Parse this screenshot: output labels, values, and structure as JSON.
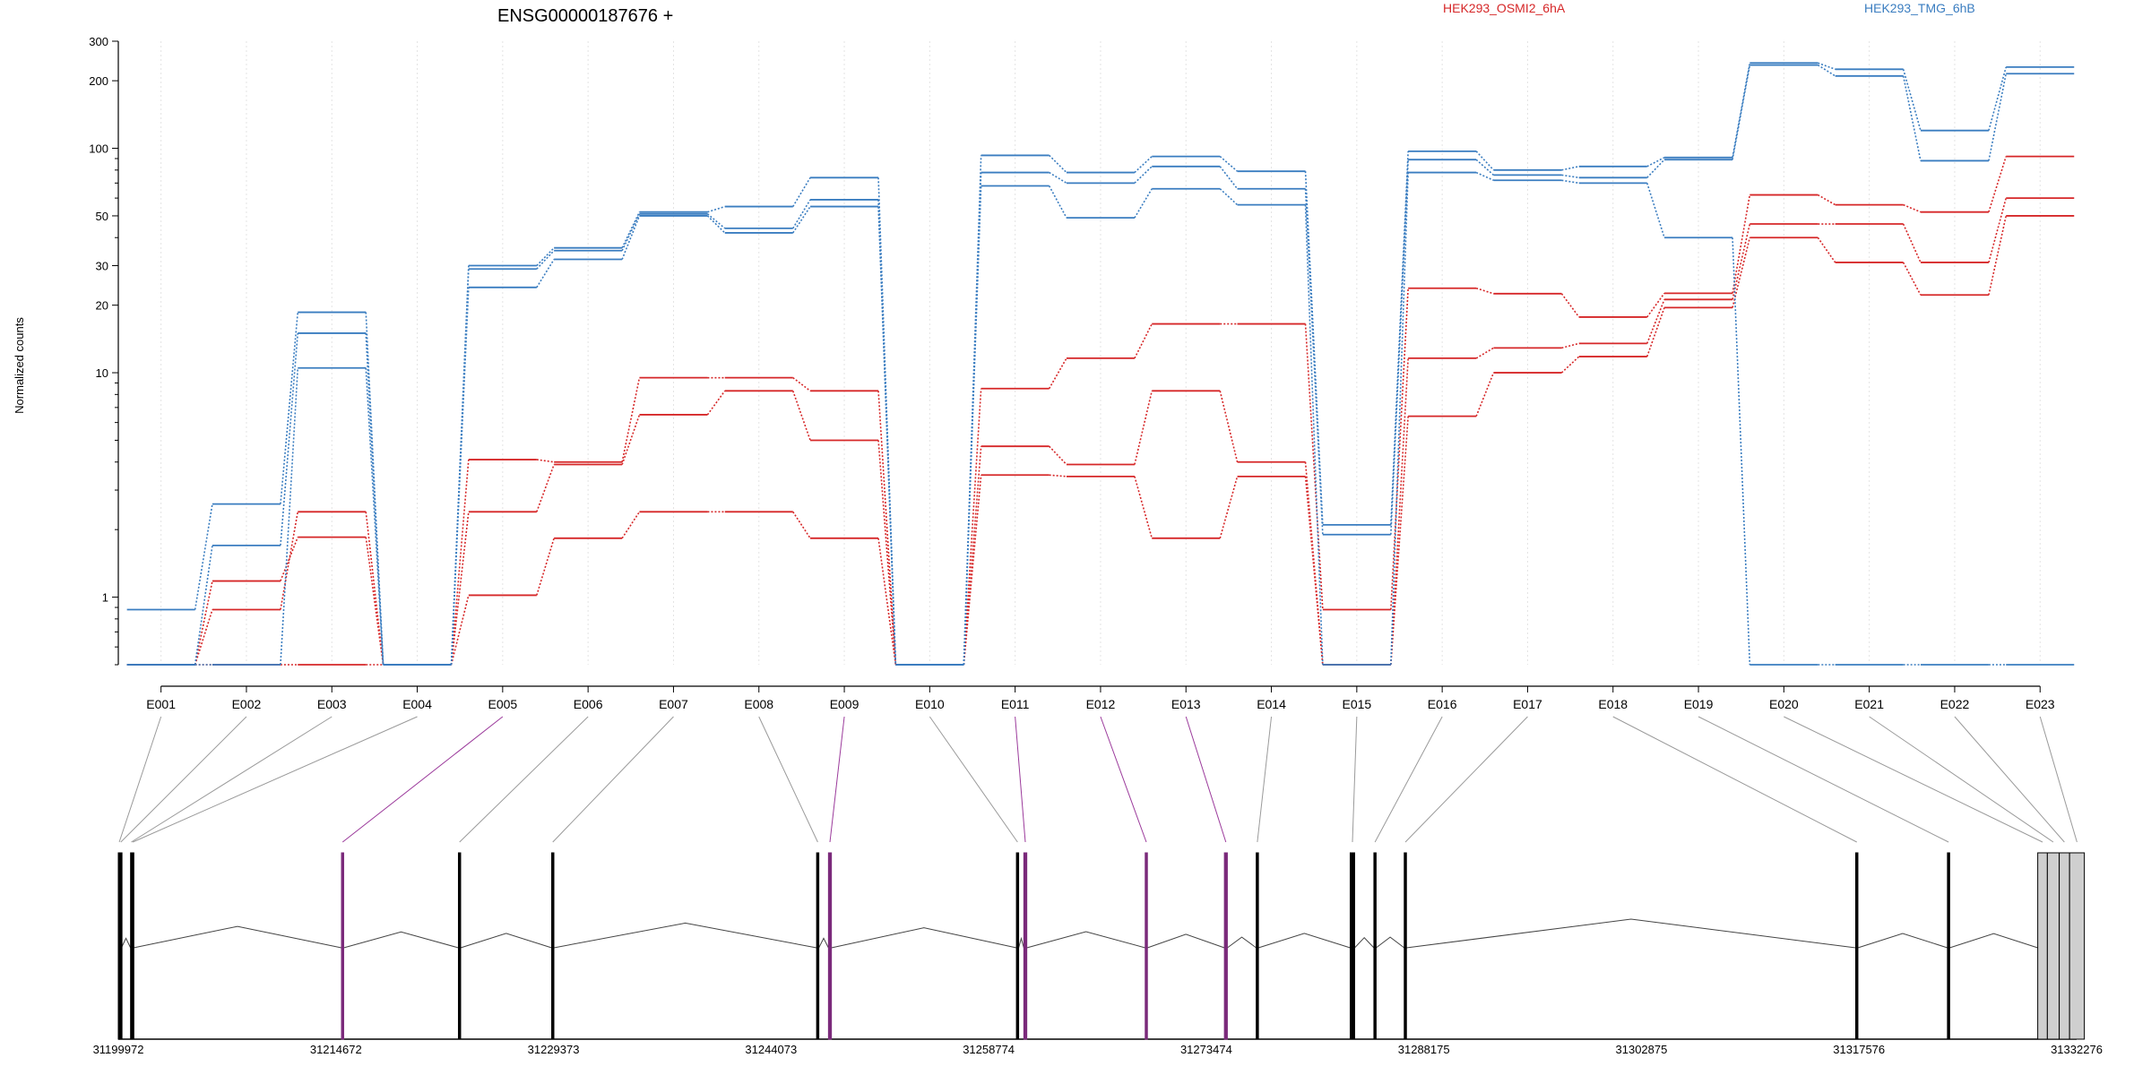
{
  "chart_data": {
    "type": "line",
    "title": "ENSG00000187676 +",
    "ylabel": "Normalized counts",
    "yscale": "log",
    "ylim": [
      0.5,
      300
    ],
    "y_ticks": [
      1,
      10,
      20,
      30,
      50,
      100,
      200,
      300
    ],
    "grid": "vertical dotted lines at exon centers",
    "legend": [
      {
        "name": "HEK293_OSMI2_6hA",
        "color": "#d62728"
      },
      {
        "name": "HEK293_TMG_6hB",
        "color": "#3a7dc0"
      }
    ],
    "legend_placement": "top",
    "categories": [
      "E001",
      "E002",
      "E003",
      "E004",
      "E005",
      "E006",
      "E007",
      "E008",
      "E009",
      "E010",
      "E011",
      "E012",
      "E013",
      "E014",
      "E015",
      "E016",
      "E017",
      "E018",
      "E019",
      "E020",
      "E021",
      "E022",
      "E023"
    ],
    "series": [
      {
        "group": "HEK293_OSMI2_6hA",
        "color": "#d62728",
        "values": [
          0.5,
          0.88,
          2.4,
          0.5,
          4.1,
          4.0,
          9.5,
          9.5,
          8.3,
          0.5,
          8.5,
          11.6,
          16.5,
          16.5,
          0.88,
          23.8,
          22.5,
          17.7,
          22.6,
          62,
          56,
          52,
          92
        ]
      },
      {
        "group": "HEK293_OSMI2_6hA",
        "color": "#d62728",
        "values": [
          0.5,
          1.18,
          1.85,
          0.5,
          2.4,
          3.9,
          6.5,
          8.3,
          5.0,
          0.5,
          4.7,
          3.9,
          8.3,
          4.0,
          0.5,
          11.6,
          12.9,
          13.5,
          21.2,
          46,
          46,
          31,
          60
        ]
      },
      {
        "group": "HEK293_OSMI2_6hA",
        "color": "#d62728",
        "values": [
          0.5,
          0.5,
          0.5,
          0.5,
          1.02,
          1.83,
          2.4,
          2.4,
          1.83,
          0.5,
          3.5,
          3.45,
          1.83,
          3.45,
          0.5,
          6.4,
          10.0,
          11.8,
          19.5,
          40,
          31,
          22.2,
          50
        ]
      },
      {
        "group": "HEK293_TMG_6hB",
        "color": "#3a7dc0",
        "values": [
          0.88,
          2.6,
          18.6,
          0.5,
          30,
          36,
          52,
          55,
          74,
          0.5,
          93,
          78,
          92,
          79,
          2.1,
          97,
          80,
          83,
          91,
          240,
          225,
          120,
          230
        ]
      },
      {
        "group": "HEK293_TMG_6hB",
        "color": "#3a7dc0",
        "values": [
          0.5,
          1.7,
          15,
          0.5,
          29,
          35,
          51,
          44,
          59,
          0.5,
          78,
          70,
          83,
          66,
          1.9,
          89,
          76,
          74,
          89,
          235,
          210,
          88,
          215
        ]
      },
      {
        "group": "HEK293_TMG_6hB",
        "color": "#3a7dc0",
        "values": [
          0.5,
          0.5,
          10.5,
          0.5,
          24,
          32,
          50,
          42,
          55,
          0.5,
          68,
          49,
          66,
          56,
          0.5,
          78,
          72,
          70,
          40,
          0.5,
          0.5,
          0.5,
          0.5
        ]
      }
    ],
    "gene_model": {
      "coordinate_ticks": [
        "31199972",
        "31214672",
        "31229373",
        "31244073",
        "31258774",
        "31273474",
        "31288175",
        "31302875",
        "31317576",
        "31332276"
      ],
      "exons": [
        {
          "id": "E001",
          "start": 31199972,
          "end": 31200100,
          "highlight": false
        },
        {
          "id": "E002",
          "start": 31200100,
          "end": 31200180,
          "highlight": false
        },
        {
          "id": "E003",
          "start": 31200800,
          "end": 31200900,
          "highlight": false
        },
        {
          "id": "E004",
          "start": 31200900,
          "end": 31201000,
          "highlight": false
        },
        {
          "id": "E005",
          "start": 31215050,
          "end": 31215200,
          "highlight": true
        },
        {
          "id": "E006",
          "start": 31222950,
          "end": 31223100,
          "highlight": false
        },
        {
          "id": "E007",
          "start": 31229250,
          "end": 31229400,
          "highlight": false
        },
        {
          "id": "E008",
          "start": 31247150,
          "end": 31247300,
          "highlight": false
        },
        {
          "id": "E009",
          "start": 31247950,
          "end": 31248150,
          "highlight": true
        },
        {
          "id": "E010",
          "start": 31260650,
          "end": 31260800,
          "highlight": false
        },
        {
          "id": "E011",
          "start": 31261150,
          "end": 31261350,
          "highlight": true
        },
        {
          "id": "E012",
          "start": 31269350,
          "end": 31269500,
          "highlight": true
        },
        {
          "id": "E013",
          "start": 31274700,
          "end": 31274900,
          "highlight": true
        },
        {
          "id": "E014",
          "start": 31276850,
          "end": 31277000,
          "highlight": false
        },
        {
          "id": "E015",
          "start": 31283200,
          "end": 31283500,
          "highlight": false
        },
        {
          "id": "E016",
          "start": 31284800,
          "end": 31284950,
          "highlight": false
        },
        {
          "id": "E017",
          "start": 31286850,
          "end": 31287000,
          "highlight": false
        },
        {
          "id": "E018",
          "start": 31317350,
          "end": 31317500,
          "highlight": false
        },
        {
          "id": "E019",
          "start": 31323550,
          "end": 31323700,
          "highlight": false
        },
        {
          "id": "E020",
          "start": 31329650,
          "end": 31330300,
          "highlight": false
        },
        {
          "id": "E021",
          "start": 31330300,
          "end": 31331100,
          "highlight": false
        },
        {
          "id": "E022",
          "start": 31331100,
          "end": 31331800,
          "highlight": false
        },
        {
          "id": "E023",
          "start": 31331800,
          "end": 31332800,
          "highlight": false
        }
      ]
    }
  }
}
